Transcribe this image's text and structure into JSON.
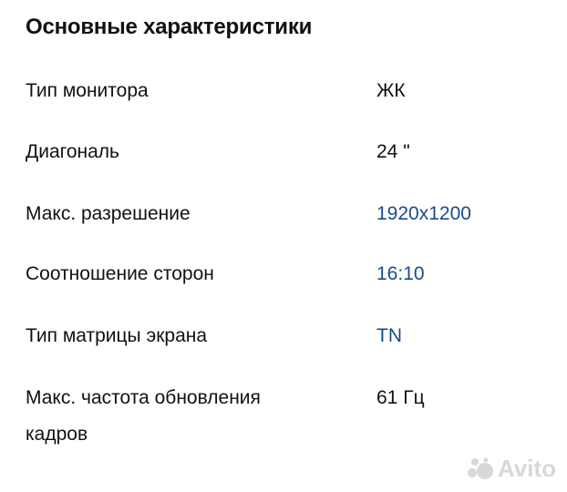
{
  "section": {
    "title": "Основные характеристики"
  },
  "specs": [
    {
      "label": "Тип монитора",
      "value": "ЖК",
      "link": false
    },
    {
      "label": "Диагональ",
      "value": "24 \"",
      "link": false
    },
    {
      "label": "Макс. разрешение",
      "value": "1920x1200",
      "link": true
    },
    {
      "label": "Соотношение сторон",
      "value": "16:10",
      "link": true
    },
    {
      "label": "Тип матрицы экрана",
      "value": "TN",
      "link": true
    },
    {
      "label": "Макс. частота обновления кадров",
      "value": "61 Гц",
      "link": false
    }
  ],
  "watermark": {
    "text": "Avito"
  },
  "colors": {
    "link": "#1a4a8e",
    "text": "#111111"
  }
}
